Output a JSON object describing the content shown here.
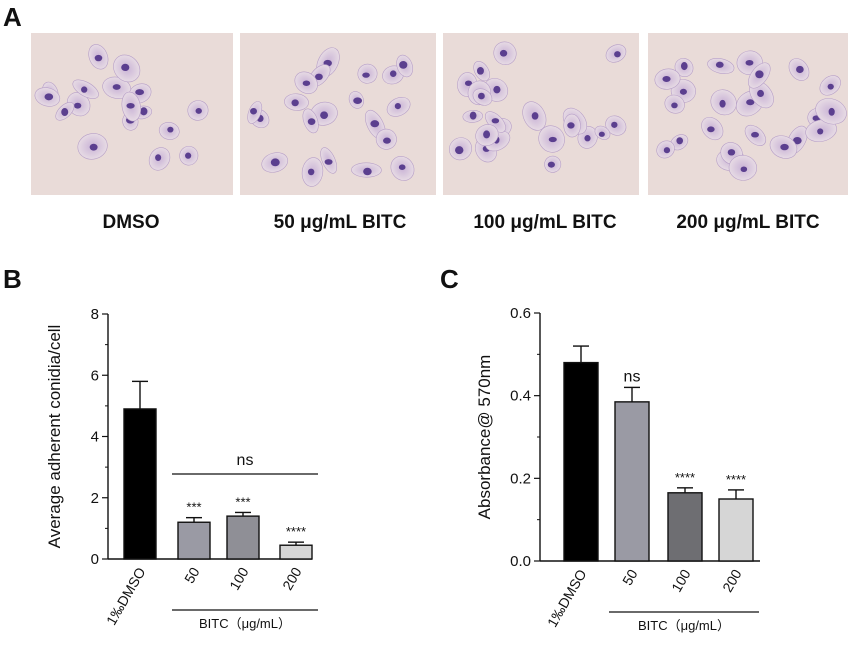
{
  "panels": {
    "a": {
      "letter": "A",
      "images": [
        {
          "caption": "DMSO",
          "description": "micrograph"
        },
        {
          "caption": "50 μg/mL BITC",
          "description": "micrograph"
        },
        {
          "caption": "100 μg/mL BITC",
          "description": "micrograph"
        },
        {
          "caption": "200 μg/mL BITC",
          "description": "micrograph"
        }
      ]
    },
    "b": {
      "letter": "B",
      "group_label": "BITC（μg/mL）"
    },
    "c": {
      "letter": "C",
      "group_label": "BITC（μg/mL）"
    }
  },
  "colors": {
    "bar_dmso": "#000000",
    "bar_50_b": "#9a9aa4",
    "bar_50_c": "#9a9aa4",
    "bar_100_b": "#8f8f96",
    "bar_100_c": "#6e6e72",
    "bar_200": "#d6d6d6",
    "image_bg": "#e9dbd8",
    "cell_stain": "#5b3f8f"
  },
  "chart_data": [
    {
      "id": "B",
      "type": "bar",
      "title": "",
      "ylabel": "Average adherent conidia/cell",
      "xlabel": "BITC（μg/mL）",
      "categories": [
        "1‰DMSO",
        "50",
        "100",
        "200"
      ],
      "values": [
        4.9,
        1.2,
        1.4,
        0.45
      ],
      "errors": [
        0.9,
        0.15,
        0.12,
        0.1
      ],
      "ylim": [
        0,
        8
      ],
      "yticks": [
        0,
        2,
        4,
        6,
        8
      ],
      "significance": [
        "",
        "***",
        "***",
        "****"
      ],
      "bracket": {
        "from": 1,
        "to": 3,
        "label": "ns"
      },
      "grid": false,
      "legend": "none"
    },
    {
      "id": "C",
      "type": "bar",
      "title": "",
      "ylabel": "Absorbance@ 570nm",
      "xlabel": "BITC（μg/mL）",
      "categories": [
        "1‰DMSO",
        "50",
        "100",
        "200"
      ],
      "values": [
        0.48,
        0.385,
        0.165,
        0.15
      ],
      "errors": [
        0.04,
        0.035,
        0.012,
        0.022
      ],
      "ylim": [
        0,
        0.6
      ],
      "yticks": [
        "0.0",
        "0.2",
        "0.4",
        "0.6"
      ],
      "significance": [
        "",
        "ns",
        "****",
        "****"
      ],
      "grid": false,
      "legend": "none"
    }
  ]
}
